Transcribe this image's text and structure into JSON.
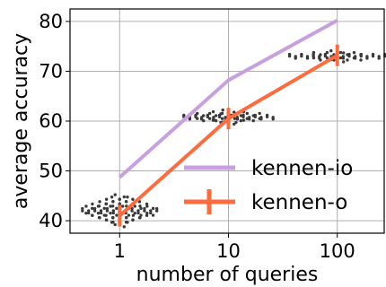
{
  "chart_data": {
    "type": "line",
    "xlabel": "number of queries",
    "ylabel": "average accuracy",
    "x_scale": "log",
    "x_ticks": [
      1,
      10,
      100
    ],
    "x_tick_labels": [
      "1",
      "10",
      "100"
    ],
    "xlim": [
      0.35,
      270
    ],
    "y_ticks": [
      40,
      50,
      60,
      70,
      80
    ],
    "y_tick_labels": [
      "40",
      "50",
      "60",
      "70",
      "80"
    ],
    "ylim": [
      37.5,
      82.5
    ],
    "grid": true,
    "legend_position": "lower-right",
    "series": [
      {
        "name": "kennen-io",
        "color": "#c8a0e0",
        "x": [
          1,
          10,
          100
        ],
        "y": [
          48.7,
          68.2,
          80.2
        ]
      },
      {
        "name": "kennen-o",
        "color": "#ff6b3d",
        "x": [
          1,
          10,
          100
        ],
        "y": [
          41.0,
          60.5,
          73.2
        ],
        "error_bars": true
      }
    ],
    "swarms": [
      {
        "x": 1,
        "center": 42.0,
        "color": "#3a3a3a"
      },
      {
        "x": 10,
        "center": 60.8,
        "color": "#3a3a3a"
      },
      {
        "x": 100,
        "center": 73.0,
        "color": "#3a3a3a"
      }
    ]
  }
}
